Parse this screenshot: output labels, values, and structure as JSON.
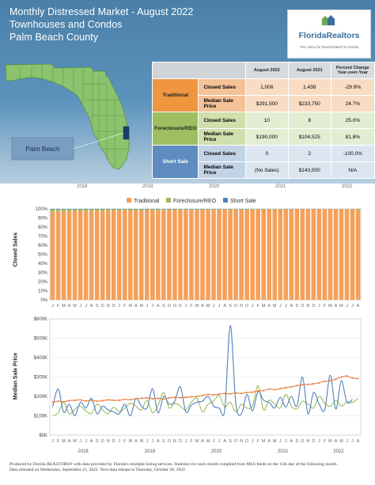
{
  "header": {
    "title_line1": "Monthly Distressed Market - August 2022",
    "title_line2": "Townhouses and Condos",
    "title_line3": "Palm Beach County",
    "map_label": "Palm Beach"
  },
  "logo": {
    "name": "FloridaRealtors",
    "tagline": "The Voice for Real Estate® in Florida"
  },
  "stats_table": {
    "headers": [
      "August 2022",
      "August 2021",
      "Percent Change Year-over-Year"
    ],
    "rows": [
      {
        "category": "Traditional",
        "metric": "Closed Sales",
        "aug2022": "1,008",
        "aug2021": "1,438",
        "change": "-29.9%"
      },
      {
        "category": "Traditional",
        "metric": "Median Sale Price",
        "aug2022": "$291,500",
        "aug2021": "$233,750",
        "change": "24.7%"
      },
      {
        "category": "Foreclosure/REO",
        "metric": "Closed Sales",
        "aug2022": "10",
        "aug2021": "8",
        "change": "25.0%"
      },
      {
        "category": "Foreclosure/REO",
        "metric": "Median Sale Price",
        "aug2022": "$190,000",
        "aug2021": "$104,525",
        "change": "81.8%"
      },
      {
        "category": "Short Sale",
        "metric": "Closed Sales",
        "aug2022": "0",
        "aug2021": "2",
        "change": "-100.0%"
      },
      {
        "category": "Short Sale",
        "metric": "Median Sale Price",
        "aug2022": "(No Sales)",
        "aug2021": "$143,500",
        "change": "N/A"
      }
    ]
  },
  "colors": {
    "traditional": "#f5a05a",
    "foreclosure": "#9bbb59",
    "short_sale": "#4f81bd",
    "traditional_line": "#e8864a",
    "header_blue": "#4a7fa8"
  },
  "year_labels": [
    "2018",
    "2019",
    "2020",
    "2021",
    "2022"
  ],
  "month_letters": [
    "J",
    "F",
    "M",
    "A",
    "M",
    "J",
    "J",
    "A",
    "S",
    "O",
    "N",
    "D"
  ],
  "chart_data": [
    {
      "type": "bar",
      "stacked": true,
      "ylabel": "Closed Sales",
      "ylim": [
        0,
        100
      ],
      "yticks": [
        "0%",
        "10%",
        "20%",
        "30%",
        "40%",
        "50%",
        "60%",
        "70%",
        "80%",
        "90%",
        "100%"
      ],
      "legend": [
        "Traditional",
        "Foreclosure/REO",
        "Short Sale"
      ],
      "legend_position": "top",
      "series": [
        {
          "name": "Traditional",
          "values": [
            97.2,
            97.6,
            97.4,
            97.8,
            97.9,
            98.1,
            97.7,
            98.0,
            98.2,
            97.9,
            98.4,
            98.1,
            98.3,
            98.5,
            98.2,
            98.6,
            98.4,
            98.7,
            98.8,
            98.5,
            98.9,
            98.7,
            98.6,
            98.8,
            99.0,
            98.9,
            98.8,
            99.1,
            99.2,
            98.9,
            99.0,
            99.2,
            99.1,
            99.3,
            99.1,
            99.2,
            99.3,
            99.4,
            99.2,
            99.5,
            99.4,
            99.5,
            99.6,
            99.4,
            99.5,
            99.6,
            99.5,
            99.7,
            99.6,
            99.7,
            99.5,
            99.6,
            99.7,
            99.8,
            99.7,
            99.0
          ]
        },
        {
          "name": "Foreclosure/REO",
          "values": [
            2.1,
            1.8,
            2.0,
            1.6,
            1.6,
            1.4,
            1.7,
            1.5,
            1.3,
            1.6,
            1.2,
            1.4,
            1.3,
            1.1,
            1.3,
            1.0,
            1.2,
            0.9,
            0.9,
            1.1,
            0.8,
            1.0,
            1.0,
            0.9,
            0.7,
            0.8,
            0.9,
            0.6,
            0.6,
            0.8,
            0.7,
            0.6,
            0.6,
            0.5,
            0.7,
            0.6,
            0.5,
            0.4,
            0.6,
            0.4,
            0.4,
            0.4,
            0.3,
            0.4,
            0.4,
            0.3,
            0.4,
            0.2,
            0.3,
            0.2,
            0.4,
            0.3,
            0.2,
            0.1,
            0.2,
            1.0
          ]
        },
        {
          "name": "Short Sale",
          "values": [
            0.7,
            0.6,
            0.6,
            0.6,
            0.5,
            0.5,
            0.6,
            0.5,
            0.5,
            0.5,
            0.4,
            0.5,
            0.4,
            0.4,
            0.5,
            0.4,
            0.4,
            0.4,
            0.3,
            0.4,
            0.3,
            0.3,
            0.4,
            0.3,
            0.3,
            0.3,
            0.3,
            0.3,
            0.2,
            0.3,
            0.3,
            0.2,
            0.3,
            0.2,
            0.2,
            0.2,
            0.2,
            0.2,
            0.2,
            0.1,
            0.2,
            0.1,
            0.1,
            0.2,
            0.1,
            0.1,
            0.1,
            0.1,
            0.1,
            0.1,
            0.1,
            0.1,
            0.1,
            0.1,
            0.1,
            0.0
          ]
        }
      ]
    },
    {
      "type": "line",
      "ylabel": "Median Sale Price",
      "ylim": [
        0,
        600000
      ],
      "yticks": [
        "$0K",
        "$100K",
        "$200K",
        "$300K",
        "$400K",
        "$500K",
        "$600K"
      ],
      "series": [
        {
          "name": "Traditional",
          "values": [
            170000,
            175000,
            172000,
            178000,
            180000,
            182000,
            176000,
            180000,
            175000,
            178000,
            182000,
            180000,
            180000,
            185000,
            183000,
            188000,
            190000,
            192000,
            188000,
            190000,
            186000,
            192000,
            195000,
            193000,
            195000,
            198000,
            200000,
            205000,
            210000,
            208000,
            212000,
            215000,
            213000,
            218000,
            215000,
            220000,
            222000,
            228000,
            230000,
            238000,
            235000,
            240000,
            245000,
            250000,
            255000,
            260000,
            262000,
            265000,
            270000,
            278000,
            280000,
            290000,
            300000,
            305000,
            295000,
            291500
          ]
        },
        {
          "name": "Foreclosure/REO",
          "values": [
            100000,
            115000,
            170000,
            110000,
            135000,
            150000,
            125000,
            112000,
            160000,
            130000,
            110000,
            145000,
            120000,
            140000,
            165000,
            150000,
            130000,
            180000,
            115000,
            155000,
            220000,
            140000,
            165000,
            150000,
            130000,
            170000,
            190000,
            120000,
            160000,
            175000,
            205000,
            145000,
            170000,
            120000,
            160000,
            140000,
            150000,
            255000,
            130000,
            180000,
            160000,
            140000,
            210000,
            150000,
            135000,
            175000,
            160000,
            140000,
            200000,
            165000,
            148000,
            180000,
            150000,
            172000,
            168000,
            190000
          ]
        },
        {
          "name": "Short Sale",
          "values": [
            145000,
            238000,
            118000,
            160000,
            100000,
            170000,
            140000,
            190000,
            110000,
            150000,
            130000,
            120000,
            110000,
            160000,
            100000,
            190000,
            150000,
            140000,
            240000,
            115000,
            200000,
            160000,
            175000,
            250000,
            120000,
            155000,
            170000,
            175000,
            200000,
            150000,
            140000,
            130000,
            565000,
            160000,
            110000,
            210000,
            125000,
            225000,
            180000,
            170000,
            140000,
            195000,
            145000,
            200000,
            150000,
            300000,
            110000,
            220000,
            160000,
            130000,
            310000,
            135000,
            280000,
            170000,
            185000,
            null
          ]
        }
      ]
    }
  ],
  "footer": {
    "line1": "Produced by Florida REALTORS® with data provided by Florida's multiple listing services. Statistics for each month compiled from MLS feeds on the 15th day of the following month.",
    "line2": "Data released on Wednesday, September 21, 2022. Next data release is Thursday, October 20, 2022."
  }
}
